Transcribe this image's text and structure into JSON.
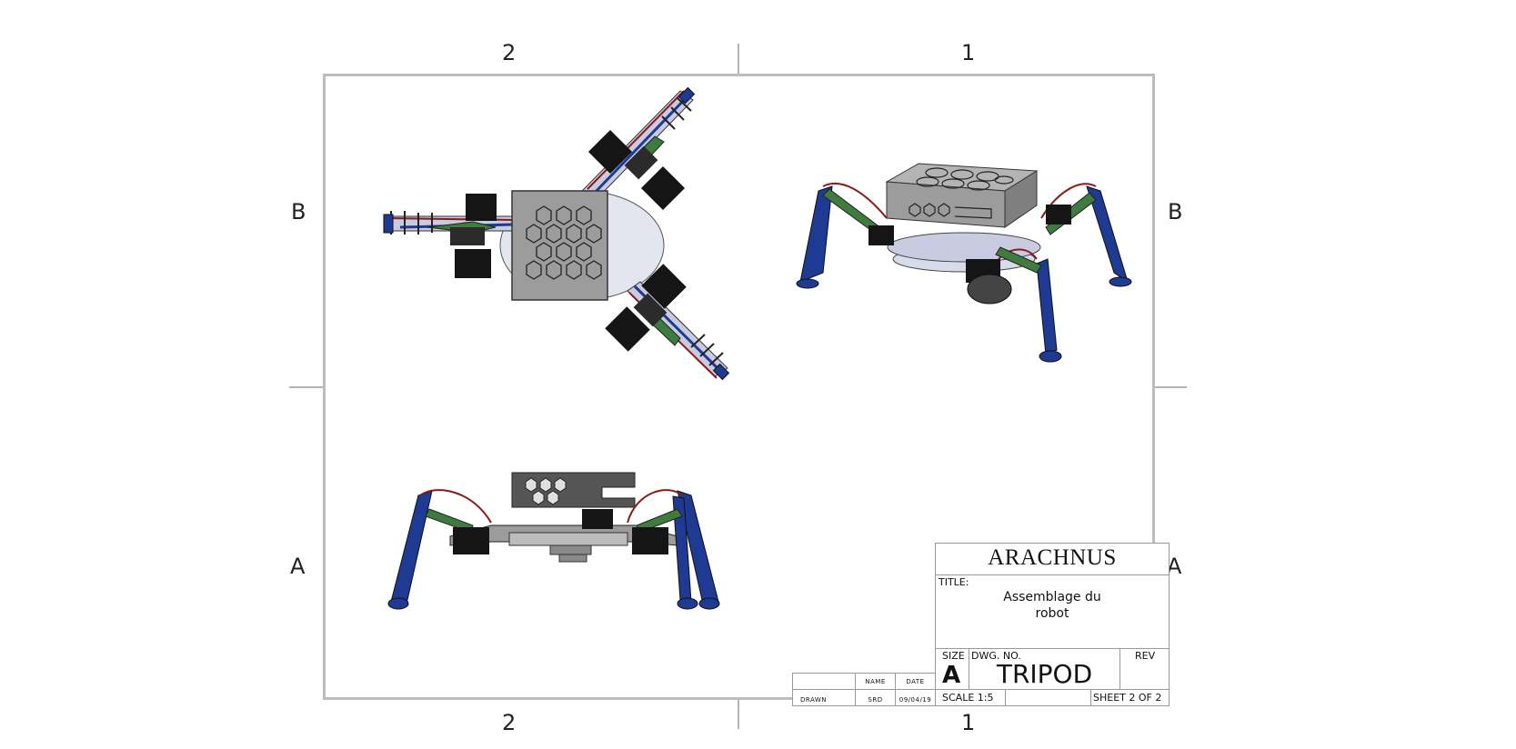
{
  "zones": {
    "top": [
      "2",
      "1"
    ],
    "bottom": [
      "2",
      "1"
    ],
    "left": [
      "B",
      "A"
    ],
    "right": [
      "B",
      "A"
    ]
  },
  "title_block": {
    "company": "ARACHNUS",
    "title_label": "TITLE:",
    "title_line1": "Assemblage du",
    "title_line2": "robot",
    "size_label": "SIZE",
    "size_value": "A",
    "dwg_no_label": "DWG. NO.",
    "dwg_no_value": "TRIPOD",
    "rev_label": "REV",
    "scale": "SCALE 1:5",
    "sheet": "SHEET 2 OF 2"
  },
  "signature_table": {
    "col_name": "NAME",
    "col_date": "DATE",
    "row_label": "DRAWN",
    "drawn_name": "SRD",
    "drawn_date": "09/04/19"
  },
  "colors": {
    "frame": "#bdbdbd",
    "plate": "#9c9c9c",
    "servo": "#151515",
    "leg_blue": "#1f3a93",
    "cable_red": "#8b1a1a",
    "cable_green": "#3f7a3f",
    "base": "#d8dbe8"
  },
  "views": [
    "top-view",
    "isometric-view",
    "front-view"
  ]
}
